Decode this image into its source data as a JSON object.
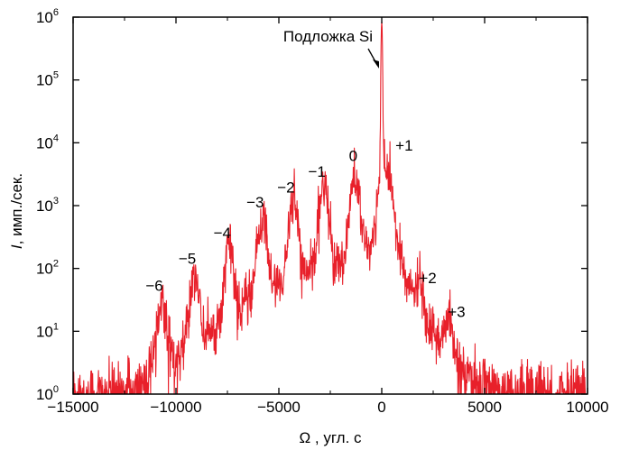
{
  "chart_data": {
    "type": "line",
    "xlabel": "Ω , угл. с",
    "ylabel": "I, имп./сек.",
    "ylabel_italic_part": "I",
    "ylabel_rest": ", имп./сек.",
    "xlim": [
      -15000,
      10000
    ],
    "ylim": [
      1,
      1000000
    ],
    "yscale": "log",
    "grid": false,
    "series_color": "#e8202a",
    "x_ticks": [
      {
        "value": -15000,
        "label": "−15000"
      },
      {
        "value": -10000,
        "label": "−10000"
      },
      {
        "value": -5000,
        "label": "−5000"
      },
      {
        "value": 0,
        "label": "0"
      },
      {
        "value": 5000,
        "label": "5000"
      },
      {
        "value": 10000,
        "label": "10000"
      }
    ],
    "y_ticks": [
      {
        "value": 1,
        "base": "10",
        "exp": "0"
      },
      {
        "value": 10,
        "base": "10",
        "exp": "1"
      },
      {
        "value": 100,
        "base": "10",
        "exp": "2"
      },
      {
        "value": 1000,
        "base": "10",
        "exp": "3"
      },
      {
        "value": 10000,
        "base": "10",
        "exp": "4"
      },
      {
        "value": 100000,
        "base": "10",
        "exp": "5"
      },
      {
        "value": 1000000,
        "base": "10",
        "exp": "6"
      }
    ],
    "peaks": [
      {
        "label": "−6",
        "x": -10700,
        "y": 26
      },
      {
        "label": "−5",
        "x": -9100,
        "y": 70
      },
      {
        "label": "−4",
        "x": -7400,
        "y": 180
      },
      {
        "label": "−3",
        "x": -5800,
        "y": 550
      },
      {
        "label": "−2",
        "x": -4300,
        "y": 950
      },
      {
        "label": "−1",
        "x": -2800,
        "y": 1700
      },
      {
        "label": "0",
        "x": -1300,
        "y": 2500
      },
      {
        "label": "+1",
        "x": 300,
        "y": 3000
      },
      {
        "label": "+2",
        "x": 1800,
        "y": 45
      },
      {
        "label": "+3",
        "x": 3200,
        "y": 13
      }
    ],
    "substrate_peak": {
      "label": "Подложка Si",
      "x": 0,
      "y": 850000
    },
    "background_level": 2
  }
}
